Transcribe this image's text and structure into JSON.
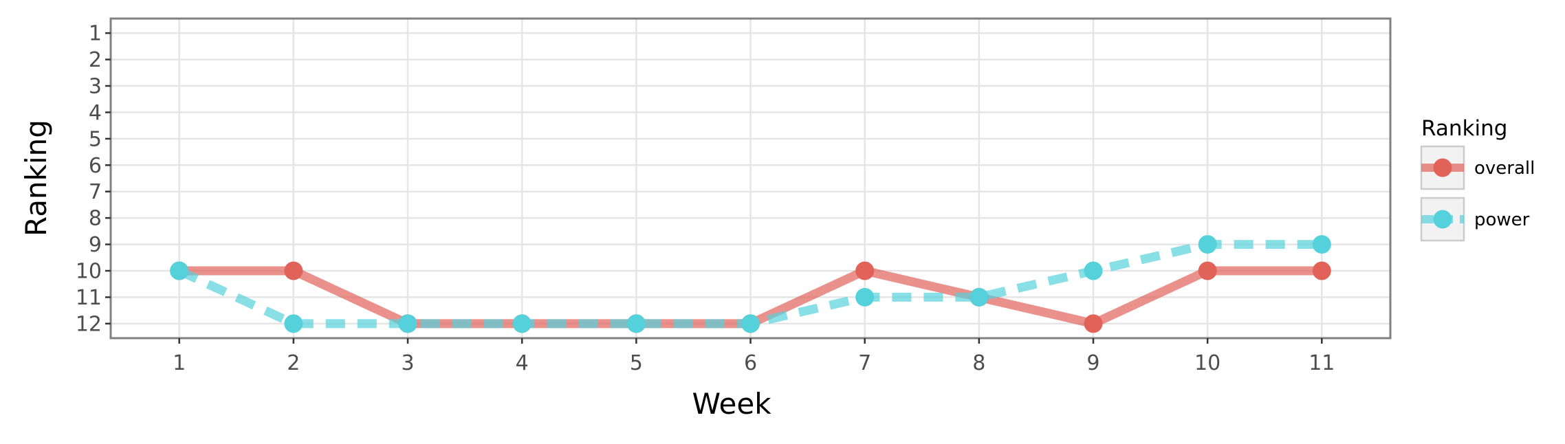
{
  "chart_data": {
    "type": "line",
    "title": "",
    "xlabel": "Week",
    "ylabel": "Ranking",
    "x": [
      1,
      2,
      3,
      4,
      5,
      6,
      7,
      8,
      9,
      10,
      11
    ],
    "xlim": [
      0.4,
      11.6
    ],
    "ylim": [
      12.55,
      0.45
    ],
    "y_axis_reversed": true,
    "x_ticks": [
      1,
      2,
      3,
      4,
      5,
      6,
      7,
      8,
      9,
      10,
      11
    ],
    "y_ticks": [
      1,
      2,
      3,
      4,
      5,
      6,
      7,
      8,
      9,
      10,
      11,
      12
    ],
    "grid": true,
    "legend_title": "Ranking",
    "legend_position": "right",
    "series": [
      {
        "name": "overall",
        "color": "#e06259",
        "line_style": "solid",
        "values": [
          10,
          10,
          12,
          12,
          12,
          12,
          10,
          11,
          12,
          10,
          10
        ]
      },
      {
        "name": "power",
        "color": "#55d1db",
        "line_style": "dashed",
        "values": [
          10,
          12,
          12,
          12,
          12,
          12,
          11,
          11,
          10,
          9,
          9
        ]
      }
    ]
  }
}
